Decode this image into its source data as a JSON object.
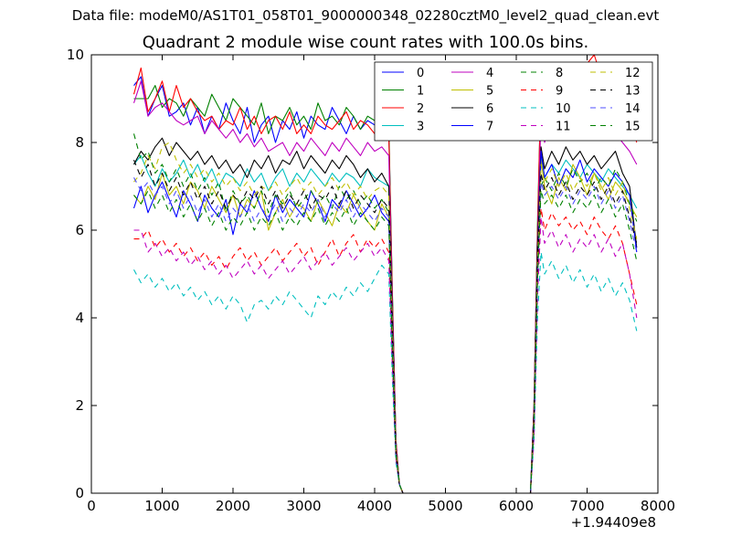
{
  "supertitle": "Data file: modeM0/AS1T01_058T01_9000000348_02280cztM0_level2_quad_clean.evt",
  "chart_data": {
    "type": "line",
    "title": "Quadrant 2 module wise count rates with 100.0s bins.",
    "xlabel": "",
    "ylabel": "",
    "x_offset_label": "+1.94409e8",
    "xlim": [
      0,
      8000
    ],
    "ylim": [
      0,
      10
    ],
    "xticks": [
      "0",
      "1000",
      "2000",
      "3000",
      "4000",
      "5000",
      "6000",
      "7000",
      "8000"
    ],
    "yticks": [
      "0",
      "2",
      "4",
      "6",
      "8",
      "10"
    ],
    "legend_placement": "top-right",
    "legend_columns": 4,
    "grid": false,
    "x": [
      600,
      700,
      800,
      900,
      1000,
      1100,
      1200,
      1300,
      1400,
      1500,
      1600,
      1700,
      1800,
      1900,
      2000,
      2100,
      2200,
      2300,
      2400,
      2500,
      2600,
      2700,
      2800,
      2900,
      3000,
      3100,
      3200,
      3300,
      3400,
      3500,
      3600,
      3700,
      3800,
      3900,
      4000,
      4100,
      4200,
      4250,
      4300,
      4350,
      4400,
      6200,
      6250,
      6300,
      6350,
      6400,
      6500,
      6600,
      6700,
      6800,
      6900,
      7000,
      7100,
      7200,
      7300,
      7400,
      7500,
      7600,
      7700
    ],
    "series": [
      {
        "name": "0",
        "color": "#0000ff",
        "dash": "solid",
        "values": [
          9.3,
          9.5,
          8.6,
          9.0,
          9.3,
          8.6,
          8.7,
          8.9,
          8.4,
          8.8,
          8.2,
          8.6,
          8.3,
          8.9,
          8.5,
          8.2,
          8.8,
          8.0,
          8.4,
          8.6,
          8.0,
          8.5,
          8.3,
          8.7,
          8.1,
          8.6,
          8.4,
          8.3,
          8.8,
          8.5,
          8.2,
          8.6,
          8.3,
          8.5,
          8.4,
          8.6,
          8.3,
          4.5,
          1.2,
          0.2,
          0.0,
          0.0,
          2.0,
          6.0,
          8.9,
          8.2,
          8.8,
          8.5,
          8.4,
          8.7,
          8.3,
          8.5,
          8.6,
          8.2,
          8.5,
          8.3,
          8.7,
          8.3,
          8.4
        ]
      },
      {
        "name": "1",
        "color": "#008000",
        "dash": "solid",
        "values": [
          9.0,
          9.0,
          9.0,
          9.3,
          8.8,
          9.0,
          8.9,
          8.6,
          9.0,
          8.8,
          8.6,
          9.1,
          8.8,
          8.5,
          9.0,
          8.8,
          8.6,
          8.4,
          8.9,
          8.2,
          8.6,
          8.5,
          8.8,
          8.4,
          8.6,
          8.3,
          8.9,
          8.5,
          8.6,
          8.4,
          8.8,
          8.6,
          8.3,
          8.6,
          8.5,
          8.7,
          8.4,
          4.6,
          1.2,
          0.2,
          0.0,
          0.0,
          2.0,
          6.2,
          9.3,
          8.8,
          9.0,
          9.2,
          8.6,
          9.0,
          8.8,
          8.9,
          9.1,
          8.5,
          8.8,
          8.6,
          9.0,
          8.7,
          8.9
        ]
      },
      {
        "name": "2",
        "color": "#ff0000",
        "dash": "solid",
        "values": [
          9.1,
          9.7,
          8.7,
          9.0,
          9.4,
          8.7,
          9.3,
          8.8,
          9.0,
          8.7,
          8.5,
          8.6,
          8.3,
          8.5,
          8.4,
          8.8,
          8.3,
          8.6,
          8.2,
          8.5,
          8.6,
          8.3,
          8.7,
          8.2,
          8.4,
          8.2,
          8.6,
          8.4,
          8.3,
          8.5,
          8.7,
          8.3,
          8.5,
          8.4,
          8.2,
          8.4,
          8.2,
          4.4,
          1.2,
          0.2,
          0.0,
          0.0,
          2.0,
          6.0,
          9.4,
          8.8,
          9.3,
          9.1,
          9.3,
          9.5,
          9.2,
          9.8,
          10.0,
          9.5,
          9.2,
          8.9,
          9.1,
          8.6,
          8.0
        ]
      },
      {
        "name": "3",
        "color": "#00bfbf",
        "dash": "solid",
        "values": [
          7.5,
          7.7,
          7.3,
          7.0,
          7.4,
          7.1,
          7.3,
          7.6,
          7.2,
          7.5,
          7.1,
          7.4,
          7.0,
          7.3,
          7.2,
          7.0,
          7.4,
          7.1,
          7.3,
          6.9,
          7.2,
          7.4,
          7.0,
          7.3,
          7.1,
          7.4,
          7.2,
          7.0,
          7.3,
          7.1,
          7.3,
          7.2,
          7.0,
          7.4,
          7.2,
          7.1,
          7.0,
          3.8,
          1.0,
          0.2,
          0.0,
          0.0,
          1.7,
          5.5,
          7.7,
          7.2,
          7.5,
          7.3,
          7.6,
          7.4,
          7.2,
          7.5,
          7.3,
          7.1,
          7.4,
          7.2,
          7.0,
          6.8,
          6.5
        ]
      },
      {
        "name": "4",
        "color": "#bf00bf",
        "dash": "solid",
        "values": [
          8.9,
          9.4,
          8.6,
          8.8,
          8.9,
          8.7,
          8.5,
          8.4,
          8.5,
          8.6,
          8.2,
          8.5,
          8.3,
          8.1,
          8.3,
          8.0,
          8.2,
          7.9,
          8.1,
          7.8,
          7.9,
          8.0,
          7.7,
          8.0,
          7.8,
          8.1,
          7.9,
          7.7,
          8.0,
          7.8,
          8.1,
          7.9,
          7.7,
          8.0,
          7.8,
          7.9,
          7.7,
          4.2,
          1.1,
          0.2,
          0.0,
          0.0,
          1.9,
          5.8,
          8.6,
          8.0,
          8.5,
          8.3,
          8.6,
          8.4,
          8.2,
          8.5,
          8.3,
          8.1,
          8.4,
          8.2,
          8.0,
          7.8,
          7.5
        ]
      },
      {
        "name": "5",
        "color": "#bfbf00",
        "dash": "solid",
        "values": [
          6.8,
          6.6,
          7.0,
          6.7,
          7.3,
          6.8,
          7.0,
          6.6,
          7.1,
          6.9,
          6.5,
          7.0,
          6.7,
          6.4,
          6.8,
          6.3,
          6.7,
          6.5,
          6.9,
          6.0,
          6.4,
          6.7,
          6.3,
          6.6,
          6.5,
          6.2,
          6.7,
          6.4,
          6.1,
          6.6,
          6.4,
          6.8,
          6.5,
          6.2,
          6.0,
          6.6,
          6.3,
          3.5,
          1.0,
          0.2,
          0.0,
          0.0,
          1.6,
          5.2,
          7.6,
          7.0,
          6.6,
          7.2,
          6.9,
          7.5,
          7.2,
          6.8,
          7.3,
          7.0,
          6.7,
          7.1,
          6.9,
          6.6,
          6.3
        ]
      },
      {
        "name": "6",
        "color": "#000000",
        "dash": "solid",
        "values": [
          7.5,
          7.8,
          7.6,
          7.9,
          8.1,
          7.7,
          8.0,
          7.8,
          7.6,
          7.8,
          7.5,
          7.7,
          7.4,
          7.6,
          7.3,
          7.5,
          7.2,
          7.6,
          7.4,
          7.7,
          7.3,
          7.6,
          7.5,
          7.8,
          7.4,
          7.7,
          7.5,
          7.3,
          7.6,
          7.4,
          7.7,
          7.5,
          7.2,
          7.4,
          7.1,
          7.3,
          7.0,
          3.9,
          1.0,
          0.2,
          0.0,
          0.0,
          1.8,
          5.6,
          7.9,
          7.4,
          7.8,
          7.5,
          7.9,
          7.6,
          7.8,
          7.5,
          7.7,
          7.4,
          7.6,
          7.8,
          7.3,
          7.0,
          5.6
        ]
      },
      {
        "name": "7",
        "color": "#0000ff",
        "dash": "solid",
        "values": [
          6.5,
          7.0,
          6.4,
          6.8,
          7.1,
          6.7,
          6.3,
          6.9,
          6.6,
          6.2,
          6.8,
          6.5,
          6.3,
          6.7,
          5.9,
          6.6,
          6.4,
          6.9,
          6.5,
          6.2,
          6.8,
          6.4,
          6.7,
          6.5,
          6.3,
          6.9,
          6.6,
          6.2,
          6.7,
          6.5,
          6.9,
          6.6,
          6.3,
          6.5,
          6.8,
          6.4,
          6.2,
          3.4,
          0.9,
          0.2,
          0.0,
          0.0,
          1.6,
          5.0,
          7.8,
          7.2,
          7.5,
          7.0,
          7.4,
          7.2,
          7.6,
          7.1,
          7.4,
          7.2,
          7.0,
          7.3,
          7.1,
          6.8,
          5.5
        ]
      },
      {
        "name": "8",
        "color": "#008000",
        "dash": "dashed",
        "values": [
          8.2,
          7.6,
          7.8,
          7.3,
          7.5,
          7.1,
          7.4,
          7.0,
          7.3,
          6.9,
          7.2,
          6.8,
          7.1,
          6.4,
          6.9,
          6.6,
          6.8,
          6.5,
          6.9,
          6.4,
          6.8,
          6.6,
          6.9,
          6.5,
          6.7,
          6.9,
          6.6,
          6.8,
          6.5,
          7.0,
          6.7,
          6.9,
          6.6,
          6.8,
          6.5,
          6.7,
          6.4,
          3.5,
          0.9,
          0.2,
          0.0,
          0.0,
          1.7,
          5.2,
          7.0,
          7.2,
          6.9,
          7.3,
          7.0,
          7.4,
          7.1,
          7.3,
          6.9,
          7.2,
          7.0,
          7.4,
          7.1,
          6.6,
          6.2
        ]
      },
      {
        "name": "9",
        "color": "#ff0000",
        "dash": "dashed",
        "values": [
          5.8,
          5.8,
          6.0,
          5.6,
          5.8,
          5.5,
          5.7,
          5.4,
          5.6,
          5.3,
          5.5,
          5.2,
          5.4,
          5.1,
          5.4,
          5.6,
          5.3,
          5.5,
          5.2,
          5.4,
          5.6,
          5.3,
          5.5,
          5.7,
          5.4,
          5.6,
          5.2,
          5.5,
          5.8,
          5.4,
          5.7,
          5.9,
          5.5,
          5.8,
          5.6,
          5.8,
          5.5,
          3.0,
          0.8,
          0.2,
          0.0,
          0.0,
          1.4,
          4.8,
          6.5,
          6.0,
          6.4,
          6.1,
          6.3,
          6.0,
          6.2,
          5.9,
          6.3,
          6.0,
          5.8,
          6.1,
          5.7,
          5.0,
          4.3
        ]
      },
      {
        "name": "10",
        "color": "#00bfbf",
        "dash": "dashed",
        "values": [
          5.1,
          4.8,
          5.0,
          4.7,
          4.9,
          4.6,
          4.8,
          4.5,
          4.7,
          4.4,
          4.6,
          4.3,
          4.5,
          4.2,
          4.5,
          4.3,
          3.9,
          4.3,
          4.4,
          4.2,
          4.5,
          4.3,
          4.6,
          4.4,
          4.2,
          4.0,
          4.5,
          4.3,
          4.6,
          4.4,
          4.7,
          4.5,
          4.8,
          4.6,
          4.9,
          5.2,
          5.0,
          2.6,
          0.7,
          0.2,
          0.0,
          0.0,
          1.2,
          4.0,
          5.5,
          5.0,
          5.3,
          4.9,
          5.2,
          4.8,
          5.1,
          4.7,
          5.0,
          4.6,
          4.9,
          4.5,
          4.8,
          4.4,
          3.7
        ]
      },
      {
        "name": "11",
        "color": "#bf00bf",
        "dash": "dashed",
        "values": [
          6.0,
          6.0,
          5.5,
          5.7,
          5.4,
          5.6,
          5.3,
          5.5,
          5.2,
          5.4,
          5.1,
          5.3,
          5.0,
          5.2,
          4.9,
          5.1,
          5.3,
          5.0,
          5.2,
          4.9,
          5.1,
          5.3,
          5.0,
          5.2,
          5.4,
          5.1,
          5.3,
          5.5,
          5.2,
          5.4,
          5.6,
          5.3,
          5.5,
          5.7,
          5.4,
          5.6,
          5.3,
          2.9,
          0.8,
          0.2,
          0.0,
          0.0,
          1.3,
          4.5,
          6.3,
          5.7,
          6.0,
          5.6,
          5.9,
          5.5,
          5.8,
          5.6,
          5.9,
          5.5,
          5.8,
          5.4,
          5.7,
          5.0,
          4.0
        ]
      },
      {
        "name": "12",
        "color": "#bfbf00",
        "dash": "dashed",
        "values": [
          7.1,
          7.3,
          7.7,
          7.4,
          7.9,
          8.0,
          7.6,
          7.3,
          7.5,
          7.2,
          7.4,
          7.1,
          7.3,
          7.0,
          7.2,
          6.9,
          7.1,
          6.8,
          7.0,
          6.9,
          7.1,
          6.8,
          7.0,
          7.2,
          6.9,
          7.1,
          6.8,
          7.0,
          7.2,
          6.9,
          7.1,
          6.8,
          7.0,
          6.7,
          6.9,
          7.0,
          6.8,
          3.7,
          1.0,
          0.2,
          0.0,
          0.0,
          1.7,
          5.3,
          7.5,
          7.1,
          7.4,
          7.0,
          7.3,
          6.9,
          7.2,
          7.0,
          7.3,
          6.9,
          7.2,
          6.8,
          7.1,
          6.5,
          5.8
        ]
      },
      {
        "name": "13",
        "color": "#000000",
        "dash": "dashed",
        "values": [
          7.6,
          7.2,
          7.5,
          7.0,
          7.3,
          6.9,
          7.2,
          6.8,
          7.1,
          6.7,
          7.0,
          6.6,
          6.9,
          6.5,
          6.8,
          6.6,
          6.9,
          6.7,
          7.0,
          6.6,
          6.9,
          6.5,
          6.8,
          6.6,
          6.9,
          6.5,
          6.8,
          6.7,
          7.0,
          6.6,
          6.9,
          6.5,
          6.8,
          6.6,
          6.4,
          6.7,
          6.5,
          3.5,
          0.9,
          0.2,
          0.0,
          0.0,
          1.7,
          5.2,
          7.3,
          6.9,
          7.2,
          6.8,
          7.1,
          6.7,
          7.0,
          6.8,
          7.1,
          6.7,
          7.0,
          6.6,
          6.9,
          6.3,
          5.7
        ]
      },
      {
        "name": "14",
        "color": "#4f4fff",
        "dash": "dashed",
        "values": [
          7.2,
          6.9,
          7.1,
          6.8,
          7.0,
          6.6,
          6.9,
          6.5,
          6.8,
          6.4,
          6.7,
          6.3,
          6.6,
          6.2,
          6.5,
          6.3,
          6.6,
          6.2,
          6.5,
          6.3,
          6.6,
          6.2,
          6.5,
          6.3,
          6.6,
          6.4,
          6.7,
          6.3,
          6.6,
          6.4,
          6.7,
          6.3,
          6.6,
          6.4,
          6.2,
          6.5,
          6.3,
          3.4,
          0.9,
          0.2,
          0.0,
          0.0,
          1.6,
          5.0,
          7.1,
          6.8,
          7.0,
          6.7,
          7.0,
          6.6,
          6.9,
          6.7,
          7.0,
          6.6,
          6.9,
          6.5,
          6.8,
          6.2,
          5.5
        ]
      },
      {
        "name": "15",
        "color": "#008000",
        "dash": "dashed",
        "values": [
          6.8,
          6.6,
          6.9,
          6.5,
          6.8,
          6.4,
          6.7,
          6.3,
          6.6,
          6.2,
          6.5,
          6.1,
          6.4,
          6.0,
          6.3,
          6.1,
          6.4,
          6.0,
          6.3,
          6.1,
          6.4,
          6.0,
          6.3,
          6.1,
          6.4,
          6.2,
          6.5,
          6.1,
          6.4,
          6.2,
          6.5,
          6.1,
          6.4,
          6.2,
          6.0,
          6.3,
          6.1,
          3.3,
          0.9,
          0.2,
          0.0,
          0.0,
          1.5,
          4.9,
          6.9,
          6.6,
          6.8,
          6.5,
          6.8,
          6.4,
          6.7,
          6.5,
          6.8,
          6.4,
          6.7,
          6.3,
          6.6,
          6.0,
          5.3
        ]
      }
    ]
  }
}
